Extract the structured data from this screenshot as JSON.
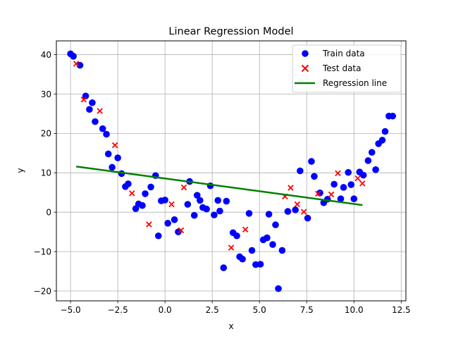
{
  "chart_data": {
    "type": "scatter",
    "title": "Linear Regression Model",
    "xlabel": "x",
    "ylabel": "y",
    "xlim": [
      -5.75,
      12.75
    ],
    "ylim": [
      -22.5,
      43.5
    ],
    "xticks": [
      -5.0,
      -2.5,
      0.0,
      2.5,
      5.0,
      7.5,
      10.0,
      12.5
    ],
    "xtick_labels": [
      "−5.0",
      "−2.5",
      "0.0",
      "2.5",
      "5.0",
      "7.5",
      "10.0",
      "12.5"
    ],
    "yticks": [
      -20,
      -10,
      0,
      10,
      20,
      30,
      40
    ],
    "ytick_labels": [
      "−20",
      "−10",
      "0",
      "10",
      "20",
      "30",
      "40"
    ],
    "grid": true,
    "legend_position": "top-right",
    "series": [
      {
        "name": "Train data",
        "marker": "circle",
        "color": "#0000ff",
        "points": [
          [
            -5.0,
            40.2
          ],
          [
            -4.85,
            39.6
          ],
          [
            -4.5,
            37.3
          ],
          [
            -4.2,
            29.5
          ],
          [
            -4.0,
            26.1
          ],
          [
            -3.85,
            27.8
          ],
          [
            -3.7,
            23.0
          ],
          [
            -3.3,
            21.2
          ],
          [
            -3.1,
            19.8
          ],
          [
            -3.0,
            14.8
          ],
          [
            -2.8,
            11.4
          ],
          [
            -2.5,
            13.8
          ],
          [
            -2.3,
            9.8
          ],
          [
            -2.1,
            6.5
          ],
          [
            -1.95,
            7.2
          ],
          [
            -1.55,
            0.9
          ],
          [
            -1.4,
            2.1
          ],
          [
            -1.2,
            1.7
          ],
          [
            -1.05,
            4.7
          ],
          [
            -0.75,
            6.4
          ],
          [
            -0.5,
            9.3
          ],
          [
            -0.35,
            -6.0
          ],
          [
            -0.2,
            2.9
          ],
          [
            0.0,
            3.1
          ],
          [
            0.15,
            -2.8
          ],
          [
            0.5,
            -1.9
          ],
          [
            0.7,
            -5.0
          ],
          [
            1.2,
            2.0
          ],
          [
            1.3,
            7.8
          ],
          [
            1.55,
            -0.8
          ],
          [
            1.7,
            4.3
          ],
          [
            1.85,
            3.0
          ],
          [
            2.0,
            1.2
          ],
          [
            2.2,
            0.8
          ],
          [
            2.4,
            6.7
          ],
          [
            2.6,
            -0.7
          ],
          [
            2.8,
            3.0
          ],
          [
            2.9,
            0.3
          ],
          [
            3.1,
            -14.1
          ],
          [
            3.25,
            2.8
          ],
          [
            3.6,
            -5.2
          ],
          [
            3.8,
            -6.0
          ],
          [
            3.95,
            -11.3
          ],
          [
            4.1,
            -11.9
          ],
          [
            4.45,
            -0.3
          ],
          [
            4.6,
            -9.7
          ],
          [
            4.8,
            -13.3
          ],
          [
            5.05,
            -13.2
          ],
          [
            5.2,
            -7.0
          ],
          [
            5.4,
            -6.5
          ],
          [
            5.5,
            -0.5
          ],
          [
            5.7,
            -8.2
          ],
          [
            5.85,
            -3.2
          ],
          [
            6.0,
            -19.4
          ],
          [
            6.2,
            -9.7
          ],
          [
            6.5,
            0.2
          ],
          [
            6.9,
            0.6
          ],
          [
            7.15,
            10.5
          ],
          [
            7.55,
            -1.5
          ],
          [
            7.75,
            12.9
          ],
          [
            7.9,
            9.1
          ],
          [
            8.2,
            4.9
          ],
          [
            8.4,
            2.4
          ],
          [
            8.6,
            3.3
          ],
          [
            8.95,
            7.1
          ],
          [
            9.3,
            3.4
          ],
          [
            9.45,
            6.3
          ],
          [
            9.7,
            10.1
          ],
          [
            9.85,
            7.0
          ],
          [
            10.0,
            3.4
          ],
          [
            10.3,
            10.2
          ],
          [
            10.5,
            9.4
          ],
          [
            10.75,
            13.1
          ],
          [
            10.95,
            15.2
          ],
          [
            11.15,
            10.8
          ],
          [
            11.3,
            17.4
          ],
          [
            11.5,
            18.3
          ],
          [
            11.65,
            20.5
          ],
          [
            11.85,
            24.4
          ],
          [
            12.05,
            24.4
          ]
        ]
      },
      {
        "name": "Test data",
        "marker": "x",
        "color": "#ff0000",
        "points": [
          [
            -4.7,
            37.7
          ],
          [
            -4.3,
            28.6
          ],
          [
            -3.45,
            25.7
          ],
          [
            -2.65,
            17.0
          ],
          [
            -1.75,
            4.8
          ],
          [
            -0.85,
            -3.1
          ],
          [
            0.35,
            2.0
          ],
          [
            0.85,
            -4.6
          ],
          [
            1.0,
            6.3
          ],
          [
            3.5,
            -9.0
          ],
          [
            4.25,
            -4.4
          ],
          [
            6.35,
            4.0
          ],
          [
            6.65,
            6.2
          ],
          [
            7.0,
            2.0
          ],
          [
            7.35,
            0.1
          ],
          [
            8.1,
            4.7
          ],
          [
            8.8,
            4.5
          ],
          [
            9.15,
            9.9
          ],
          [
            10.2,
            8.6
          ],
          [
            10.45,
            7.3
          ]
        ]
      },
      {
        "name": "Regression line",
        "type": "line",
        "color": "#008000",
        "points": [
          [
            -4.7,
            11.6
          ],
          [
            10.45,
            1.8
          ]
        ]
      }
    ]
  }
}
